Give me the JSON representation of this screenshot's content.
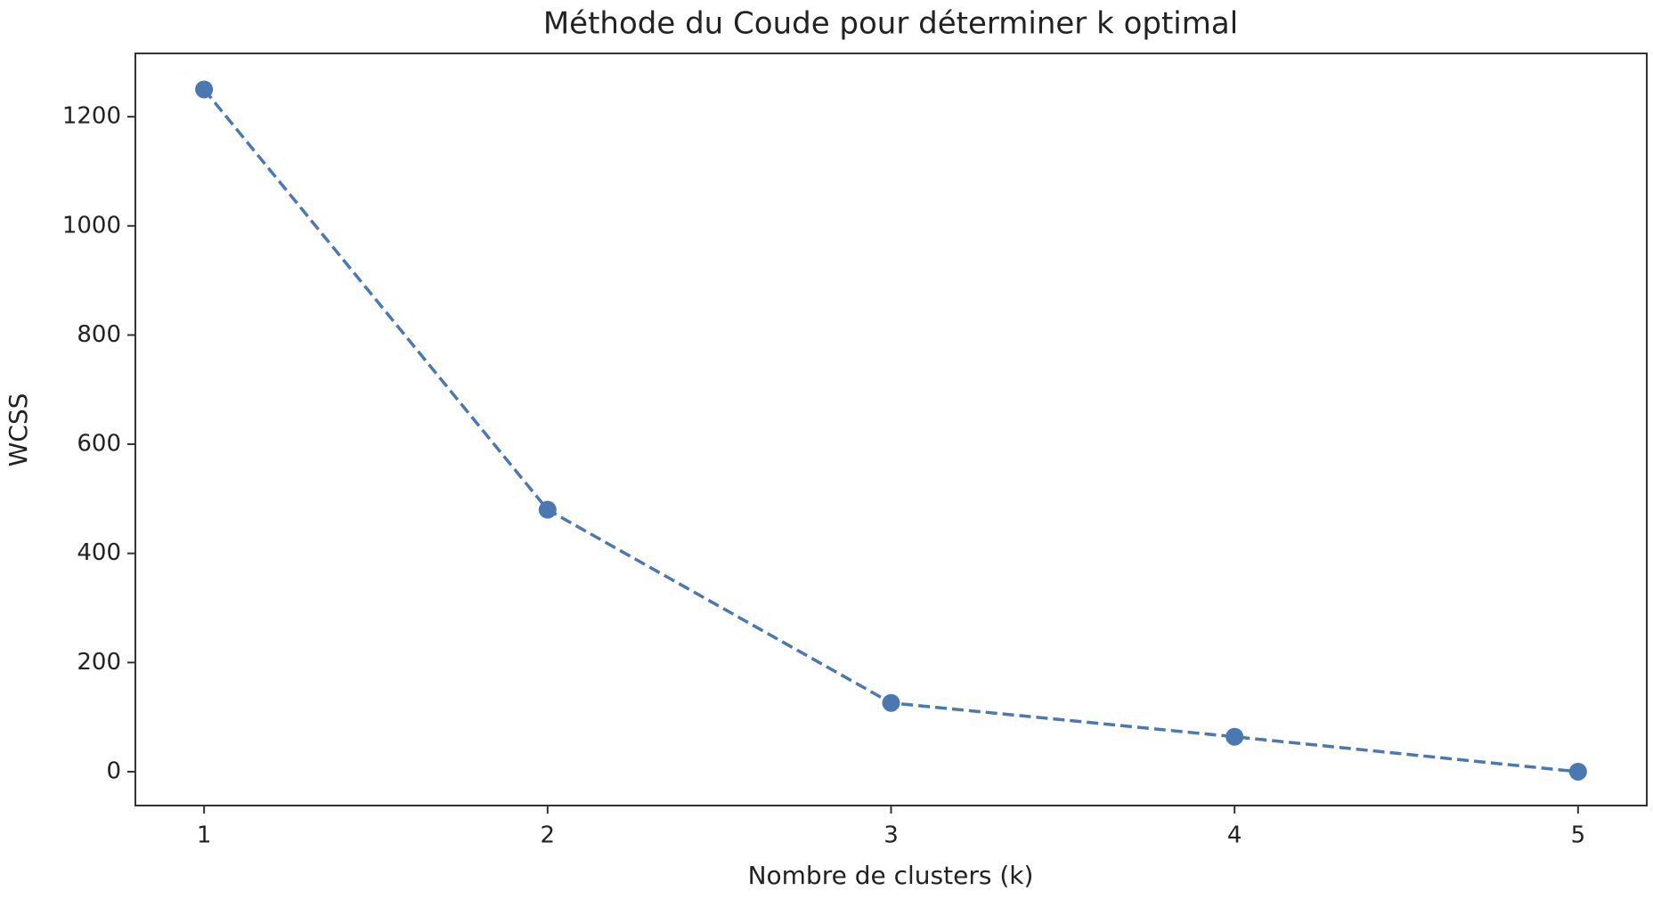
{
  "chart_data": {
    "type": "line",
    "title": "Méthode du Coude pour déterminer k optimal",
    "x_label": "Nombre de clusters (k)",
    "y_label": "WCSS",
    "x": [
      1,
      2,
      3,
      4,
      5
    ],
    "series": [
      {
        "name": "WCSS",
        "color": "#4a78b2",
        "values": [
          1250,
          480,
          126,
          64,
          0
        ]
      }
    ],
    "line_style": "dashed",
    "marker": "circle",
    "xlim": [
      0.8,
      5.2
    ],
    "xticks": [
      1,
      2,
      3,
      4,
      5
    ],
    "ylim": [
      -62,
      1316
    ],
    "yticks": [
      0,
      200,
      400,
      600,
      800,
      1000,
      1200
    ],
    "grid": false
  }
}
